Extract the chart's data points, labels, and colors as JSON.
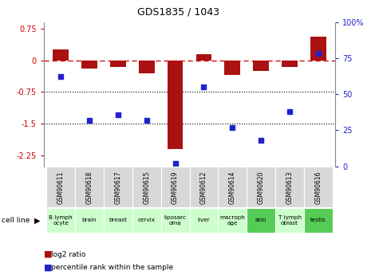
{
  "title": "GDS1835 / 1043",
  "categories": [
    "GSM90611",
    "GSM90618",
    "GSM90617",
    "GSM90615",
    "GSM90619",
    "GSM90612",
    "GSM90614",
    "GSM90620",
    "GSM90613",
    "GSM90616"
  ],
  "cell_lines": [
    "B lymph\nocyte",
    "brain",
    "breast",
    "cervix",
    "liposarc\noma",
    "liver",
    "macroph\nage",
    "skin",
    "T lymph\noblast",
    "testis"
  ],
  "cell_line_colors": [
    "#ccffcc",
    "#ccffcc",
    "#ccffcc",
    "#ccffcc",
    "#ccffcc",
    "#ccffcc",
    "#ccffcc",
    "#55cc55",
    "#ccffcc",
    "#55cc55"
  ],
  "log2_ratio": [
    0.25,
    -0.2,
    -0.15,
    -0.3,
    -2.1,
    0.15,
    -0.35,
    -0.25,
    -0.15,
    0.55
  ],
  "percentile_rank": [
    62,
    32,
    36,
    32,
    2,
    55,
    27,
    18,
    38,
    78
  ],
  "ylim_left": [
    -2.5,
    0.9
  ],
  "ylim_right": [
    0,
    100
  ],
  "left_yticks": [
    0.75,
    0,
    -0.75,
    -1.5,
    -2.25
  ],
  "right_yticks": [
    100,
    75,
    50,
    25,
    0
  ],
  "bar_color": "#aa1111",
  "dot_color": "#2222cc",
  "zero_line_color": "#cc0000",
  "dot_line_color": "#777777",
  "bar_width": 0.55
}
